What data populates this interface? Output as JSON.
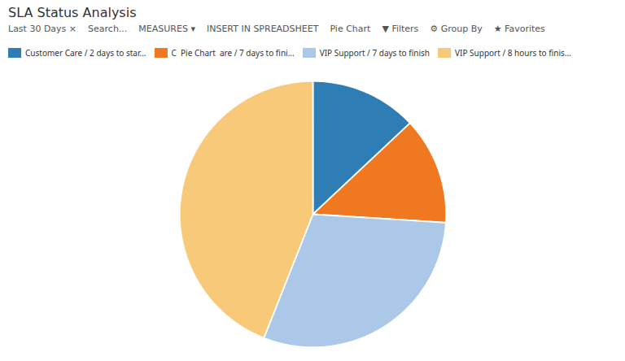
{
  "chart_data": {
    "type": "pie",
    "title": "SLA Status Analysis",
    "categories": [
      "Customer Care / 2 days to star...",
      "C  Pie Chart  are / 7 days to fini...",
      "VIP Support / 7 days to finish",
      "VIP Support / 8 hours to finis..."
    ],
    "values": [
      13,
      13,
      30,
      44
    ],
    "colors": [
      "#2e7db5",
      "#f07820",
      "#abc8e8",
      "#f9c97a"
    ],
    "legend": "top",
    "annotations": [
      "Last 30 Days ×",
      "Search...",
      "MEASURES ▾",
      "INSERT IN SPREADSHEET",
      "Pie Chart",
      "▼ Filters",
      "⚙ Group By",
      "★ Favorites"
    ]
  }
}
